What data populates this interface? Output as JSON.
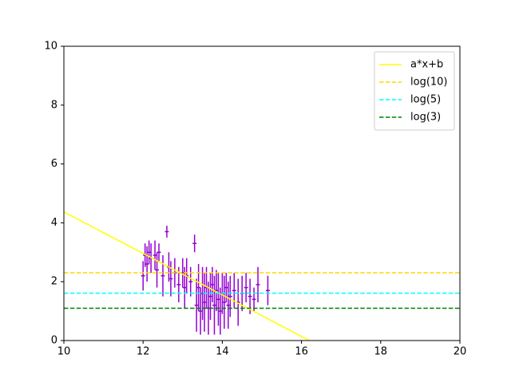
{
  "chart_data": {
    "type": "errorbar",
    "xlim": [
      10,
      20
    ],
    "ylim": [
      0,
      10
    ],
    "xticks": [
      10,
      12,
      14,
      16,
      18,
      20
    ],
    "yticks": [
      0,
      2,
      4,
      6,
      8,
      10
    ],
    "legend": "upper right",
    "lines": [
      {
        "name": "a*x+b",
        "color": "#ffff00",
        "dash": false,
        "x": [
          10,
          16.2
        ],
        "values": [
          4.37,
          0
        ]
      },
      {
        "name": "log(10)",
        "color": "#ffd700",
        "dash": true,
        "x": [
          10,
          20
        ],
        "values": [
          2.3026,
          2.3026
        ]
      },
      {
        "name": "log(5)",
        "color": "#00ffff",
        "dash": true,
        "x": [
          10,
          20
        ],
        "values": [
          1.6094,
          1.6094
        ]
      },
      {
        "name": "log(3)",
        "color": "#008000",
        "dash": true,
        "x": [
          10,
          20
        ],
        "values": [
          1.0986,
          1.0986
        ]
      }
    ],
    "errorbar": {
      "color": "#9400d3",
      "x": [
        12.0,
        12.05,
        12.1,
        12.15,
        12.2,
        12.3,
        12.35,
        12.4,
        12.5,
        12.6,
        12.65,
        12.7,
        12.8,
        12.9,
        13.0,
        13.05,
        13.1,
        13.2,
        13.3,
        13.35,
        13.4,
        13.45,
        13.5,
        13.55,
        13.6,
        13.65,
        13.7,
        13.75,
        13.8,
        13.85,
        13.9,
        13.95,
        14.0,
        14.05,
        14.1,
        14.15,
        14.2,
        14.3,
        14.4,
        14.5,
        14.6,
        14.7,
        14.8,
        14.9,
        15.15
      ],
      "values": [
        2.2,
        2.9,
        2.6,
        3.0,
        2.8,
        2.9,
        2.4,
        3.0,
        2.2,
        3.7,
        2.5,
        2.1,
        2.3,
        1.9,
        2.3,
        1.8,
        2.2,
        2.0,
        3.3,
        1.2,
        1.8,
        1.0,
        1.6,
        1.3,
        1.8,
        1.1,
        1.5,
        1.9,
        1.2,
        1.7,
        1.4,
        1.0,
        1.6,
        1.3,
        1.8,
        1.2,
        1.5,
        1.7,
        1.3,
        1.6,
        1.8,
        1.5,
        1.4,
        1.9,
        1.7
      ],
      "xerr": [
        0.05,
        0.05,
        0.05,
        0.05,
        0.05,
        0.05,
        0.05,
        0.05,
        0.05,
        0.05,
        0.05,
        0.05,
        0.05,
        0.05,
        0.05,
        0.05,
        0.05,
        0.05,
        0.05,
        0.05,
        0.05,
        0.05,
        0.05,
        0.05,
        0.05,
        0.05,
        0.05,
        0.05,
        0.05,
        0.05,
        0.05,
        0.05,
        0.05,
        0.05,
        0.05,
        0.05,
        0.05,
        0.05,
        0.05,
        0.05,
        0.05,
        0.05,
        0.05,
        0.05,
        0.05
      ],
      "yerr": [
        0.5,
        0.4,
        0.6,
        0.4,
        0.5,
        0.5,
        0.6,
        0.3,
        0.7,
        0.2,
        0.5,
        0.6,
        0.5,
        0.6,
        0.5,
        0.7,
        0.6,
        0.5,
        0.3,
        0.9,
        0.8,
        0.8,
        0.9,
        1.0,
        0.7,
        0.9,
        0.8,
        0.6,
        1.0,
        0.7,
        0.9,
        0.8,
        0.7,
        0.9,
        0.5,
        0.8,
        0.7,
        0.6,
        0.8,
        0.6,
        0.5,
        0.6,
        0.4,
        0.6,
        0.5
      ]
    }
  }
}
